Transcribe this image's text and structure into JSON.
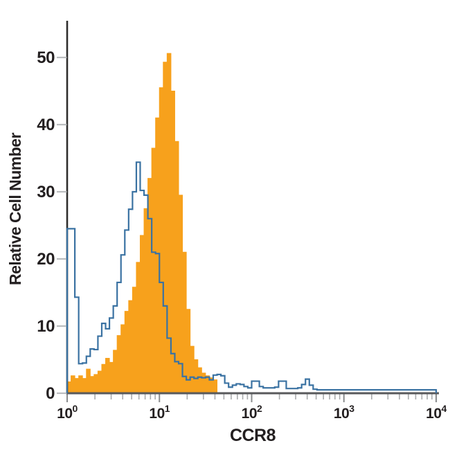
{
  "figure": {
    "background": "#ffffff"
  },
  "chart_data": {
    "type": "histogram",
    "subtype": "flow-cytometry-overlay",
    "title": "",
    "xlabel": "CCR8",
    "ylabel": "Relative Cell Number",
    "x_scale": "log10",
    "x_range": [
      1,
      10000
    ],
    "y_range": [
      0,
      52
    ],
    "grid": false,
    "legend": null,
    "y_ticks": [
      0,
      10,
      20,
      30,
      40,
      50
    ],
    "x_ticks": [
      {
        "base": "10",
        "exp": "0"
      },
      {
        "base": "10",
        "exp": "1"
      },
      {
        "base": "10",
        "exp": "2"
      },
      {
        "base": "10",
        "exp": "3"
      },
      {
        "base": "10",
        "exp": "4"
      }
    ],
    "x_minor_multiples": [
      2,
      3,
      4,
      5,
      6,
      7,
      8,
      9
    ],
    "bin_width_decades": 0.0416667,
    "series": [
      {
        "name": "stained-sample-filled",
        "style": "filled",
        "fill": "#F7A11C",
        "stroke": "#F7A11C",
        "stroke_width": 1,
        "start_log10": 0,
        "peak_value": 50.6,
        "heights": [
          1.7,
          2.6,
          2.2,
          2.6,
          2.2,
          3.6,
          2.5,
          2.8,
          3.3,
          4.3,
          5.2,
          4.6,
          6.4,
          8.6,
          10.2,
          12.2,
          13.8,
          15.8,
          19.5,
          23.5,
          27.5,
          32.0,
          36.5,
          41.0,
          45.5,
          49.3,
          50.6,
          45.0,
          37.5,
          29.5,
          21.0,
          12.5,
          7.0,
          5.0,
          3.8,
          3.0,
          2.6,
          2.3,
          2.0
        ]
      },
      {
        "name": "control-open-outline",
        "style": "open",
        "fill": "none",
        "stroke": "#3A72A2",
        "stroke_width": 2.2,
        "start_log10": 0,
        "peak_value": 34.4,
        "heights": [
          24.5,
          24.5,
          14.3,
          4.4,
          4.5,
          5.5,
          6.6,
          6.5,
          8.5,
          10.4,
          9.6,
          11.2,
          13.0,
          16.5,
          20.6,
          24.3,
          27.4,
          30.0,
          34.4,
          30.2,
          29.5,
          26.0,
          21.0,
          20.8,
          16.5,
          13.0,
          8.2,
          5.9,
          4.7,
          4.4,
          2.5,
          2.0,
          2.4,
          2.2,
          2.4,
          2.3,
          2.4,
          2.0,
          2.7,
          2.8,
          2.6,
          1.5,
          0.9,
          1.2,
          1.4,
          1.3,
          1.0,
          0.8,
          1.8,
          1.8,
          1.0,
          0.8,
          0.8,
          0.8,
          0.9,
          1.8,
          1.8,
          0.7,
          0.7,
          0.7,
          0.8,
          1.3,
          2.1,
          1.2,
          0.6,
          0.5,
          0.5,
          0.5,
          0.5,
          0.5,
          0.5,
          0.5,
          0.5,
          0.5,
          0.5,
          0.5,
          0.5,
          0.5,
          0.5,
          0.5,
          0.5,
          0.5,
          0.5,
          0.5,
          0.5,
          0.5,
          0.5,
          0.5,
          0.5,
          0.5,
          0.5,
          0.5,
          0.5,
          0.5,
          0.5,
          0.5
        ]
      }
    ]
  },
  "colors": {
    "y_axis": "#2e2d2c",
    "x_axis": "#58595b",
    "y_tick": "#bbbdbf",
    "x_major_tick": "#8a8c8e",
    "x_minor_tick": "#a9abad",
    "text": "#231f20",
    "orange_fill": "#F7A11C",
    "blue_line": "#3A72A2"
  }
}
